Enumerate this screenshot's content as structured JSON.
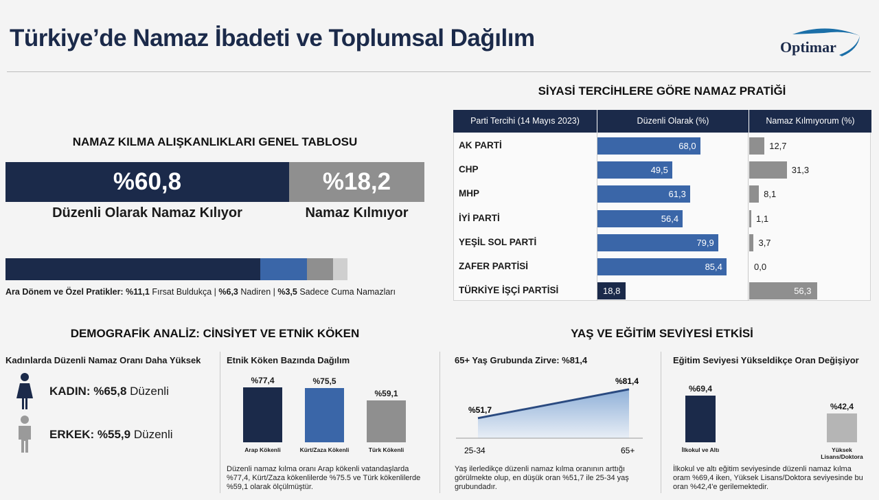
{
  "header": {
    "title": "Türkiye’de Namaz İbadeti ve Toplumsal Dağılım",
    "logo_text": "Optimar"
  },
  "overview": {
    "heading": "NAMAZ KILMA ALIŞKANLIKLARI GENEL TABLOSU",
    "regular_value": "%60,8",
    "regular_label": "Düzenli Olarak Namaz Kılıyor",
    "none_value": "%18,2",
    "none_label": "Namaz Kılmıyor",
    "breakdown_bold": "Ara Dönem ve Özel Pratikler:",
    "breakdown_1": "%11,1",
    "breakdown_1_text": "Fırsat Buldukça",
    "breakdown_2": "%6,3",
    "breakdown_2_text": "Nadiren",
    "breakdown_3": "%3,5",
    "breakdown_3_text": "Sadece Cuma Namazları",
    "segments": [
      {
        "name": "Düzenli",
        "value": 60.8,
        "color": "#1b2a4a"
      },
      {
        "name": "Fırsat Buldukça",
        "value": 11.1,
        "color": "#3a66a8"
      },
      {
        "name": "Nadiren",
        "value": 6.3,
        "color": "#8f8f8f"
      },
      {
        "name": "Sadece Cuma Namazları",
        "value": 3.5,
        "color": "#cfcfcf"
      }
    ]
  },
  "party": {
    "heading": "SİYASİ TERCİHLERE GÖRE NAMAZ PRATİĞİ",
    "col1": "Parti Tercihi (14 Mayıs 2023)",
    "col2": "Düzenli Olarak (%)",
    "col3": "Namaz Kılmıyorum (%)"
  },
  "demographics": {
    "heading": "DEMOGRAFİK ANALİZ: CİNSİYET VE ETNİK KÖKEN",
    "gender_heading": "Kadınlarda Düzenli Namaz Oranı Daha Yüksek",
    "female_bold": "KADIN: %65,8",
    "female_text": "Düzenli",
    "male_bold": "ERKEK: %55,9",
    "male_text": "Düzenli",
    "ethnic_heading": "Etnik Köken Bazında Dağılım",
    "ethnic_note": "Düzenli namaz kılma oranı Arap kökenli vatandaşlarda %77,4, Kürt/Zaza kökenlilerde %75.5 ve Türk kökenlilerde %59,1 olarak ölçülmüştür."
  },
  "age_edu": {
    "heading": "YAŞ VE EĞİTİM SEVİYESİ ETKİSİ",
    "age_heading": "65+ Yaş Grubunda Zirve: %81,4",
    "age_note": "Yaş ilerledikçe düzenli namaz kılma oranının arttığı görülmekte olup, en düşük oran %51,7 ile 25-34 yaş grubundadır.",
    "edu_heading": "Eğitim Seviyesi Yükseldikçe Oran Değişiyor",
    "edu_note": "İlkokul ve altı eğitim seviyesinde düzenli namaz kılma oram %69,4 iken, Yüksek Lisans/Doktora seviyesinde bu oran %42,4'e gerilemektedir."
  },
  "chart_data": [
    {
      "type": "bar",
      "title": "SİYASİ TERCİHLERE GÖRE NAMAZ PRATİĞİ",
      "categories": [
        "AK PARTİ",
        "CHP",
        "MHP",
        "İYİ PARTİ",
        "YEŞİL SOL PARTİ",
        "ZAFER PARTİSİ",
        "TÜRKİYE İŞÇİ PARTİSİ"
      ],
      "series": [
        {
          "name": "Düzenli Olarak (%)",
          "values": [
            68.0,
            49.5,
            61.3,
            56.4,
            79.9,
            85.4,
            18.8
          ],
          "labels": [
            "68,0",
            "49,5",
            "61,3",
            "56,4",
            "79,9",
            "85,4",
            "18,8"
          ]
        },
        {
          "name": "Namaz Kılmıyorum (%)",
          "values": [
            12.7,
            31.3,
            8.1,
            1.1,
            3.7,
            0.0,
            56.3
          ],
          "labels": [
            "12,7",
            "31,3",
            "8,1",
            "1,1",
            "3,7",
            "0,0",
            "56,3"
          ]
        }
      ]
    },
    {
      "type": "bar",
      "title": "Etnik Köken Bazında Dağılım",
      "categories": [
        "Arap Kökenli",
        "Kürt/Zaza Kökenli",
        "Türk Kökenli"
      ],
      "values": [
        77.4,
        75.5,
        59.1
      ],
      "labels": [
        "%77,4",
        "%75,5",
        "%59,1"
      ],
      "colors": [
        "#1b2a4a",
        "#3a66a8",
        "#8f8f8f"
      ]
    },
    {
      "type": "area",
      "title": "65+ Yaş Grubunda Zirve: %81,4",
      "categories": [
        "25-34",
        "65+"
      ],
      "values": [
        51.7,
        81.4
      ],
      "labels": [
        "%51,7",
        "%81,4"
      ]
    },
    {
      "type": "bar",
      "title": "Eğitim Seviyesi Yükseldikçe Oran Değişiyor",
      "categories": [
        "İlkokul ve Altı",
        "Yüksek Lisans/Doktora"
      ],
      "values": [
        69.4,
        42.4
      ],
      "labels": [
        "%69,4",
        "%42,4"
      ],
      "colors": [
        "#1b2a4a",
        "#b5b5b5"
      ]
    }
  ]
}
